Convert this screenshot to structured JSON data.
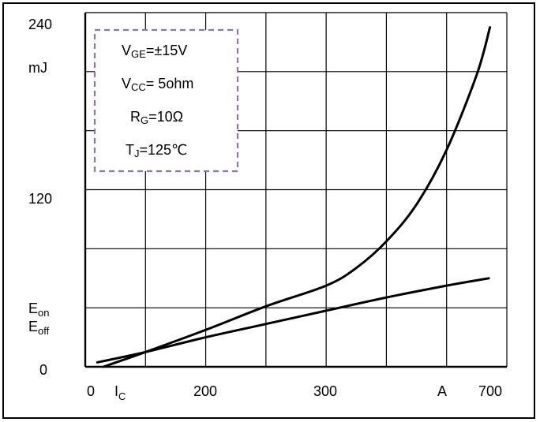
{
  "chart_data": {
    "type": "line",
    "title": "",
    "y_unit": "mJ",
    "x_unit": "A",
    "y_tick_labels": [
      "240",
      "120",
      "0"
    ],
    "x_tick_labels": [
      "0",
      "200",
      "300",
      "700"
    ],
    "x_symbol": {
      "main": "I",
      "sub": "C"
    },
    "y_symbols": [
      {
        "main": "E",
        "sub": "on"
      },
      {
        "main": "E",
        "sub": "off"
      }
    ],
    "conditions": [
      {
        "main": "V",
        "sub": "GE",
        "rest": "=±15V"
      },
      {
        "main": "V",
        "sub": "CC",
        "rest": "=  5ohm"
      },
      {
        "main": "R",
        "sub": "G",
        "rest": "=10Ω"
      },
      {
        "main": "T",
        "sub": "J",
        "rest": "=125℃"
      }
    ],
    "grid": true,
    "legend": "none",
    "note": "",
    "series": [
      {
        "points": [
          [
            15,
            0
          ],
          [
            50,
            10
          ],
          [
            100,
            25
          ],
          [
            150,
            41
          ],
          [
            200,
            55
          ],
          [
            225,
            67
          ],
          [
            250,
            85
          ],
          [
            275,
            110
          ],
          [
            300,
            147
          ],
          [
            325,
            198
          ],
          [
            336,
            230
          ]
        ]
      },
      {
        "points": [
          [
            10,
            3
          ],
          [
            50,
            10
          ],
          [
            100,
            20
          ],
          [
            150,
            29
          ],
          [
            200,
            38
          ],
          [
            250,
            47
          ],
          [
            300,
            55
          ],
          [
            335,
            60
          ]
        ]
      }
    ],
    "style": {
      "curve_color": "#000000",
      "grid_color": "#000000",
      "legend_box_color": "#8e72b6"
    }
  }
}
